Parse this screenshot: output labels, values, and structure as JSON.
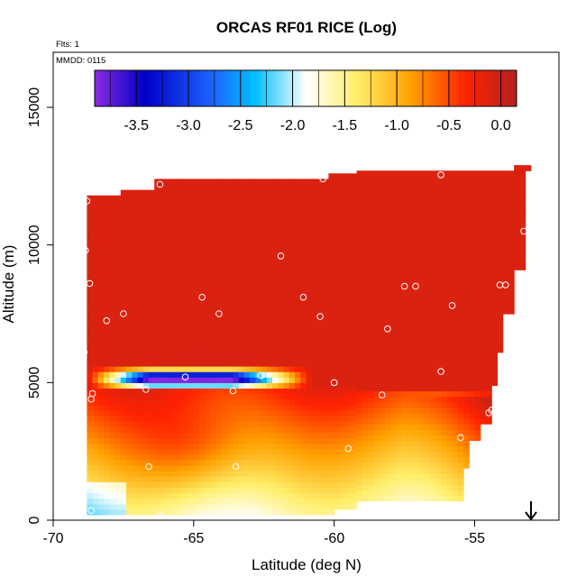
{
  "chart_data": {
    "type": "heatmap",
    "title": "ORCAS RF01 RICE (Log)",
    "xlabel": "Latitude (deg N)",
    "ylabel": "Altitude (m)",
    "xlim": [
      -70,
      -52
    ],
    "ylim": [
      0,
      17000
    ],
    "x_ticks": [
      -70,
      -65,
      -60,
      -55
    ],
    "x_tick_labels": [
      "-70",
      "-65",
      "-60",
      "-55"
    ],
    "y_ticks": [
      0,
      5000,
      10000,
      15000
    ],
    "y_tick_labels": [
      "0",
      "5000",
      "10000",
      "15000"
    ],
    "flights_label": "Flts: 1",
    "date_label": "MMDD: 0115",
    "colorbar": {
      "range": [
        -3.9,
        0.15
      ],
      "ticks": [
        -3.5,
        -3.0,
        -2.5,
        -2.0,
        -1.5,
        -1.0,
        -0.5,
        0.0
      ],
      "tick_labels": [
        "-3.5",
        "-3.0",
        "-2.5",
        "-2.0",
        "-1.5",
        "-1.0",
        "-0.5",
        "0.0"
      ],
      "colors": [
        "#8a2be2",
        "#0000c8",
        "#1e64ff",
        "#00bfff",
        "#ffffff",
        "#ffef6a",
        "#ffa000",
        "#ff2200",
        "#b22222"
      ]
    },
    "sample_points": [
      {
        "x": -68.8,
        "y": 11600
      },
      {
        "x": -66.2,
        "y": 12200
      },
      {
        "x": -60.4,
        "y": 12400
      },
      {
        "x": -56.2,
        "y": 12550
      },
      {
        "x": -53.05,
        "y": 12550
      },
      {
        "x": -68.85,
        "y": 9800
      },
      {
        "x": -61.9,
        "y": 9600
      },
      {
        "x": -68.7,
        "y": 8600
      },
      {
        "x": -64.7,
        "y": 8100
      },
      {
        "x": -61.1,
        "y": 8100
      },
      {
        "x": -57.5,
        "y": 8500
      },
      {
        "x": -57.1,
        "y": 8500
      },
      {
        "x": -55.8,
        "y": 7800
      },
      {
        "x": -54.1,
        "y": 8550
      },
      {
        "x": -53.9,
        "y": 8550
      },
      {
        "x": -53.25,
        "y": 10500
      },
      {
        "x": -53.0,
        "y": 10150
      },
      {
        "x": -68.1,
        "y": 7250
      },
      {
        "x": -67.5,
        "y": 7500
      },
      {
        "x": -64.1,
        "y": 7500
      },
      {
        "x": -60.5,
        "y": 7400
      },
      {
        "x": -58.1,
        "y": 6950
      },
      {
        "x": -68.9,
        "y": 6100
      },
      {
        "x": -53.6,
        "y": 6350
      },
      {
        "x": -62.6,
        "y": 5250
      },
      {
        "x": -65.3,
        "y": 5200
      },
      {
        "x": -56.2,
        "y": 5400
      },
      {
        "x": -68.6,
        "y": 4600
      },
      {
        "x": -68.65,
        "y": 4400
      },
      {
        "x": -66.7,
        "y": 4750
      },
      {
        "x": -63.6,
        "y": 4700
      },
      {
        "x": -60.0,
        "y": 5000
      },
      {
        "x": -58.3,
        "y": 4550
      },
      {
        "x": -54.5,
        "y": 3900
      },
      {
        "x": -54.4,
        "y": 4000
      },
      {
        "x": -55.5,
        "y": 3000
      },
      {
        "x": -59.5,
        "y": 2600
      },
      {
        "x": -63.5,
        "y": 1950
      },
      {
        "x": -66.6,
        "y": 1950
      },
      {
        "x": -68.65,
        "y": 350
      },
      {
        "x": -66.2,
        "y": 180
      },
      {
        "x": -62.8,
        "y": 330
      },
      {
        "x": -59.1,
        "y": 330
      },
      {
        "x": -55.3,
        "y": 600
      }
    ]
  }
}
